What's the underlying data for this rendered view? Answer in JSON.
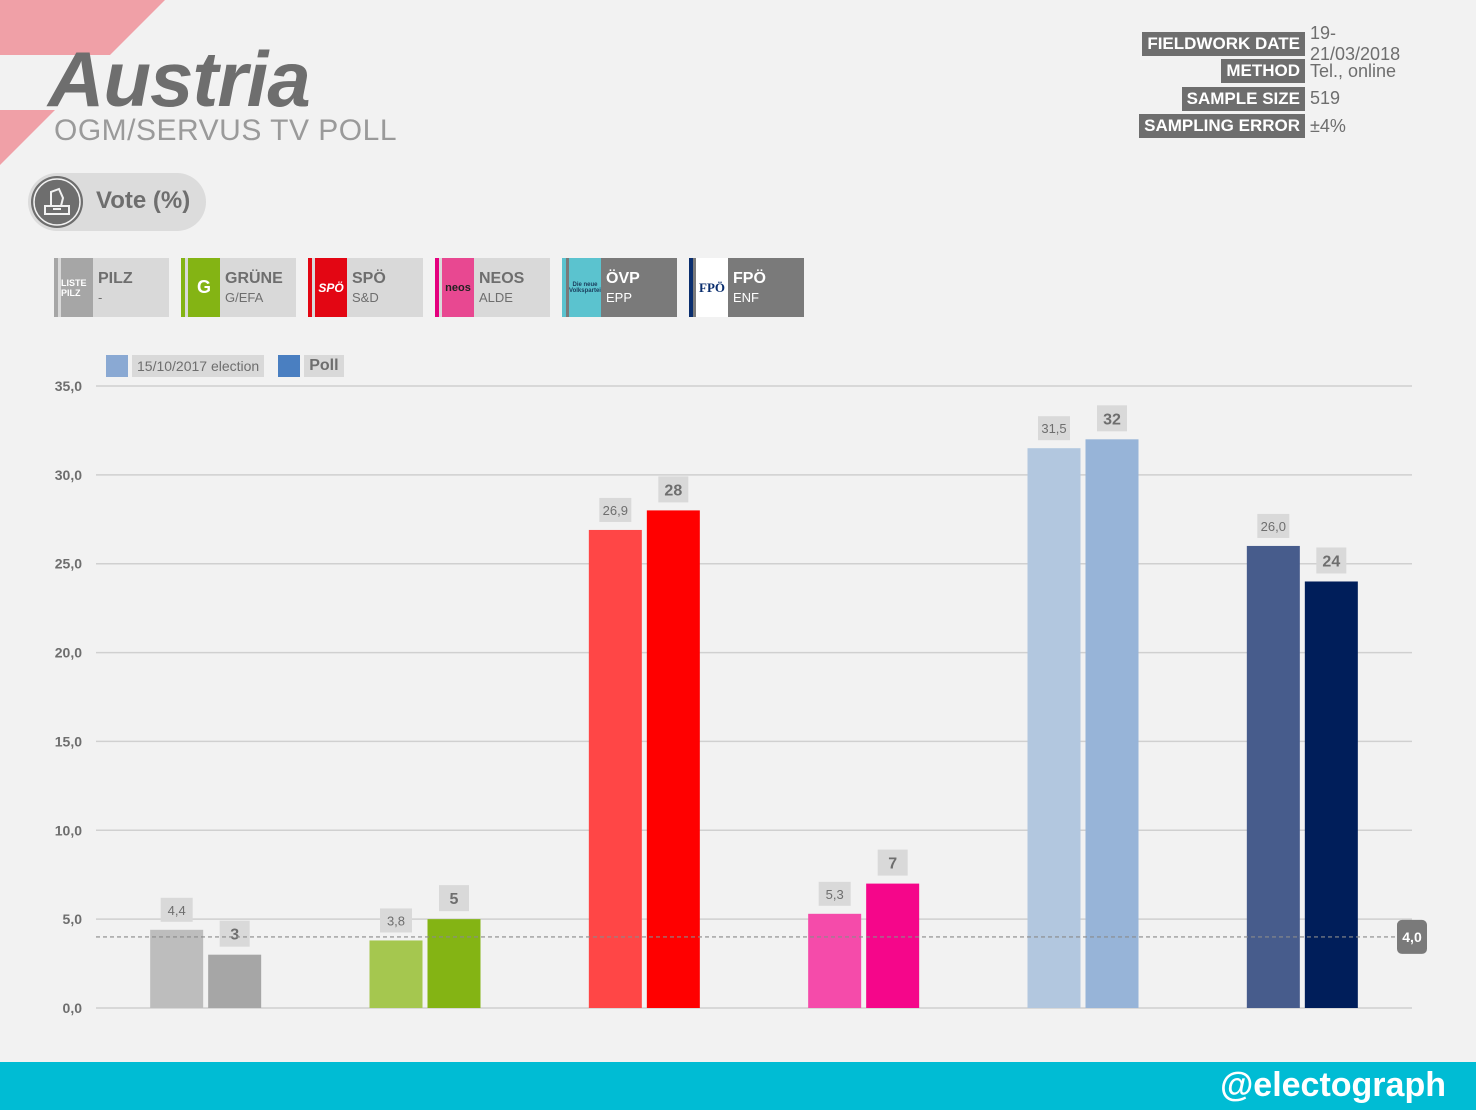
{
  "header": {
    "country": "Austria",
    "pollster": "OGM/SERVUS TV POLL"
  },
  "meta": [
    {
      "key": "FIELDWORK DATE",
      "value": "19-21/03/2018"
    },
    {
      "key": "METHOD",
      "value": "Tel., online"
    },
    {
      "key": "SAMPLE SIZE",
      "value": "519"
    },
    {
      "key": "SAMPLING ERROR",
      "value": "±4%"
    }
  ],
  "section": {
    "label": "Vote (%)",
    "icon": "ballot-box-icon"
  },
  "parties": [
    {
      "name": "PILZ",
      "group": "-",
      "logo_text": "LISTE PILZ",
      "color": "#a6a6a6",
      "dark": false
    },
    {
      "name": "GRÜNE",
      "group": "G/EFA",
      "logo_text": "G",
      "color": "#84b414",
      "dark": false
    },
    {
      "name": "SPÖ",
      "group": "S&D",
      "logo_text": "SPÖ",
      "color": "#e30613",
      "dark": false
    },
    {
      "name": "NEOS",
      "group": "ALDE",
      "logo_text": "neos",
      "color": "#e4007e",
      "dark": false
    },
    {
      "name": "ÖVP",
      "group": "EPP",
      "logo_text": "Die neue Volkspartei",
      "color": "#5bc3cf",
      "dark": true
    },
    {
      "name": "FPÖ",
      "group": "ENF",
      "logo_text": "FPÖ",
      "color": "#0a2e6e",
      "dark": true
    }
  ],
  "legend": {
    "election_label": "15/10/2017 election",
    "poll_label": "Poll"
  },
  "footer": {
    "handle": "@electograph"
  },
  "chart_data": {
    "type": "bar",
    "categories": [
      "PILZ",
      "GRÜNE",
      "SPÖ",
      "NEOS",
      "ÖVP",
      "FPÖ"
    ],
    "series": [
      {
        "name": "15/10/2017 election",
        "values": [
          4.4,
          3.8,
          26.9,
          5.3,
          31.5,
          26.0
        ],
        "labels": [
          "4,4",
          "3,8",
          "26,9",
          "5,3",
          "31,5",
          "26,0"
        ],
        "colors": [
          "#bdbdbd",
          "#a5c74f",
          "#ff4646",
          "#f54baa",
          "#b2c7df",
          "#475c8c"
        ]
      },
      {
        "name": "Poll",
        "values": [
          3,
          5,
          28,
          7,
          32,
          24
        ],
        "labels": [
          "3",
          "5",
          "28",
          "7",
          "32",
          "24"
        ],
        "colors": [
          "#a6a6a6",
          "#84b414",
          "#ff0000",
          "#f5068a",
          "#97b4d8",
          "#001e5a"
        ]
      }
    ],
    "yticks": [
      "0,0",
      "5,0",
      "10,0",
      "15,0",
      "20,0",
      "25,0",
      "30,0",
      "35,0"
    ],
    "ylim": [
      0,
      35
    ],
    "threshold": {
      "value": 4.0,
      "label": "4,0"
    },
    "grid": true,
    "legend_position": "top-left"
  }
}
